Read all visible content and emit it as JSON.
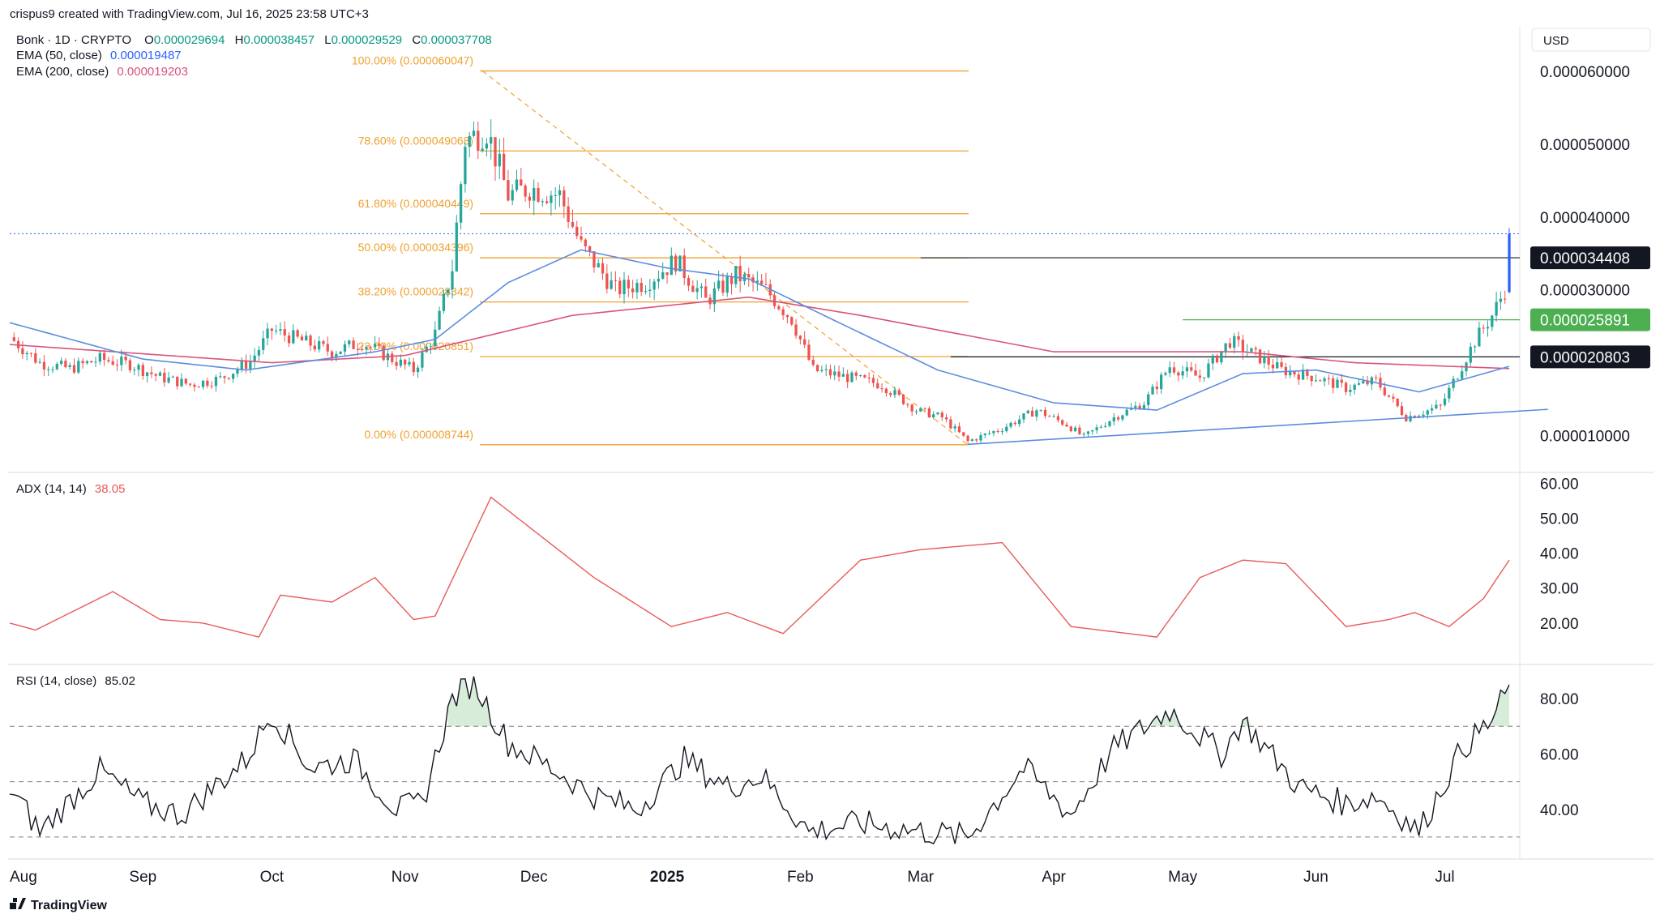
{
  "header": {
    "creator_line": "crispus9 created with TradingView.com, Jul 16, 2025 23:58 UTC+3",
    "symbol_line": "Bonk · 1D · CRYPTO",
    "ohlc": {
      "o_label": "O",
      "o_value": "0.000029694",
      "h_label": "H",
      "h_value": "0.000038457",
      "l_label": "L",
      "l_value": "0.000029529",
      "c_label": "C",
      "c_value": "0.000037708"
    },
    "ema50_label": "EMA (50, close)",
    "ema50_value": "0.000019487",
    "ema200_label": "EMA (200, close)",
    "ema200_value": "0.000019203"
  },
  "currency": "USD",
  "branding": "TradingView",
  "colors": {
    "up": "#26a69a",
    "down": "#ef5350",
    "ema50": "#5b8de0",
    "ema200": "#d9547a",
    "fib": "#f0a030",
    "adx": "#e85a5a",
    "rsi": "#131722",
    "support_green": "#4caf50",
    "last_candle": "#2962ff",
    "text_green": "#089981",
    "text_blue": "#2962ff",
    "text_pink": "#d9547a"
  },
  "chart_data": [
    {
      "type": "candlestick",
      "title": "Bonk · 1D · CRYPTO",
      "ylabel": "USD",
      "ylim": [
        7.5e-06,
        6.2e-05
      ],
      "y_ticks": [
        "0.000060000",
        "0.000050000",
        "0.000040000",
        "0.000030000",
        "0.000010000"
      ],
      "y_tick_values": [
        6e-05,
        5e-05,
        4e-05,
        3e-05,
        1e-05
      ],
      "x_ticks": [
        "Aug",
        "Sep",
        "Oct",
        "Nov",
        "Dec",
        "2025",
        "Feb",
        "Mar",
        "Apr",
        "May",
        "Jun",
        "Jul"
      ],
      "x_tick_dates": [
        "2024-08-01",
        "2024-09-01",
        "2024-10-01",
        "2024-11-01",
        "2024-12-01",
        "2025-01-01",
        "2025-02-01",
        "2025-03-01",
        "2025-04-01",
        "2025-05-01",
        "2025-06-01",
        "2025-07-01"
      ],
      "x_range": [
        "2024-08-01",
        "2025-07-16"
      ],
      "close_anchors": [
        [
          "2024-08-01",
          2.35e-05
        ],
        [
          "2024-08-08",
          2e-05
        ],
        [
          "2024-08-15",
          1.92e-05
        ],
        [
          "2024-08-22",
          2.05e-05
        ],
        [
          "2024-08-29",
          1.98e-05
        ],
        [
          "2024-09-05",
          1.8e-05
        ],
        [
          "2024-09-12",
          1.7e-05
        ],
        [
          "2024-09-19",
          1.78e-05
        ],
        [
          "2024-09-26",
          2.02e-05
        ],
        [
          "2024-10-01",
          2.45e-05
        ],
        [
          "2024-10-08",
          2.3e-05
        ],
        [
          "2024-10-15",
          2.15e-05
        ],
        [
          "2024-10-22",
          2.28e-05
        ],
        [
          "2024-10-29",
          2.05e-05
        ],
        [
          "2024-11-03",
          1.9e-05
        ],
        [
          "2024-11-08",
          2.4e-05
        ],
        [
          "2024-11-12",
          3.3e-05
        ],
        [
          "2024-11-15",
          5.05e-05
        ],
        [
          "2024-11-20",
          5.2e-05
        ],
        [
          "2024-11-25",
          4.3e-05
        ],
        [
          "2024-11-30",
          4.4e-05
        ],
        [
          "2024-12-07",
          4.3e-05
        ],
        [
          "2024-12-12",
          3.6e-05
        ],
        [
          "2024-12-20",
          3e-05
        ],
        [
          "2024-12-27",
          3.1e-05
        ],
        [
          "2025-01-03",
          3.4e-05
        ],
        [
          "2025-01-10",
          2.85e-05
        ],
        [
          "2025-01-17",
          3.2e-05
        ],
        [
          "2025-01-24",
          3e-05
        ],
        [
          "2025-01-30",
          2.6e-05
        ],
        [
          "2025-02-04",
          1.9e-05
        ],
        [
          "2025-02-12",
          1.8e-05
        ],
        [
          "2025-02-20",
          1.7e-05
        ],
        [
          "2025-02-28",
          1.35e-05
        ],
        [
          "2025-03-06",
          1.25e-05
        ],
        [
          "2025-03-12",
          9.2e-06
        ],
        [
          "2025-03-20",
          1.1e-05
        ],
        [
          "2025-03-28",
          1.35e-05
        ],
        [
          "2025-04-04",
          1.15e-05
        ],
        [
          "2025-04-08",
          9.8e-06
        ],
        [
          "2025-04-15",
          1.25e-05
        ],
        [
          "2025-04-22",
          1.45e-05
        ],
        [
          "2025-04-28",
          1.95e-05
        ],
        [
          "2025-05-05",
          1.8e-05
        ],
        [
          "2025-05-12",
          2.3e-05
        ],
        [
          "2025-05-18",
          2.1e-05
        ],
        [
          "2025-05-24",
          1.9e-05
        ],
        [
          "2025-06-01",
          1.8e-05
        ],
        [
          "2025-06-08",
          1.65e-05
        ],
        [
          "2025-06-15",
          1.75e-05
        ],
        [
          "2025-06-22",
          1.25e-05
        ],
        [
          "2025-06-30",
          1.4e-05
        ],
        [
          "2025-07-04",
          1.85e-05
        ],
        [
          "2025-07-08",
          2.3e-05
        ],
        [
          "2025-07-12",
          2.65e-05
        ],
        [
          "2025-07-15",
          3e-05
        ],
        [
          "2025-07-16",
          3.77e-05
        ]
      ],
      "ema50_anchors": [
        [
          "2024-08-01",
          2.55e-05
        ],
        [
          "2024-09-01",
          2.05e-05
        ],
        [
          "2024-09-25",
          1.9e-05
        ],
        [
          "2024-10-25",
          2.15e-05
        ],
        [
          "2024-11-08",
          2.32e-05
        ],
        [
          "2024-11-25",
          3.1e-05
        ],
        [
          "2024-12-12",
          3.55e-05
        ],
        [
          "2025-01-01",
          3.3e-05
        ],
        [
          "2025-01-20",
          3.15e-05
        ],
        [
          "2025-02-10",
          2.55e-05
        ],
        [
          "2025-03-05",
          1.9e-05
        ],
        [
          "2025-04-01",
          1.45e-05
        ],
        [
          "2025-04-25",
          1.35e-05
        ],
        [
          "2025-05-15",
          1.85e-05
        ],
        [
          "2025-06-01",
          1.9e-05
        ],
        [
          "2025-06-25",
          1.6e-05
        ],
        [
          "2025-07-16",
          1.95e-05
        ]
      ],
      "ema200_anchors": [
        [
          "2024-08-01",
          2.25e-05
        ],
        [
          "2024-10-01",
          2e-05
        ],
        [
          "2024-11-01",
          2.1e-05
        ],
        [
          "2024-12-10",
          2.65e-05
        ],
        [
          "2025-01-20",
          2.9e-05
        ],
        [
          "2025-02-15",
          2.65e-05
        ],
        [
          "2025-04-01",
          2.15e-05
        ],
        [
          "2025-05-15",
          2.15e-05
        ],
        [
          "2025-06-10",
          2e-05
        ],
        [
          "2025-07-16",
          1.92e-05
        ]
      ],
      "fib_levels": [
        {
          "label": "100.00% (0.000060047)",
          "value": 6.0047e-05
        },
        {
          "label": "78.60% (0.000049068)",
          "value": 4.9068e-05
        },
        {
          "label": "61.80% (0.000040449)",
          "value": 4.0449e-05
        },
        {
          "label": "50.00% (0.000034396)",
          "value": 3.4396e-05
        },
        {
          "label": "38.20% (0.000028342)",
          "value": 2.8342e-05
        },
        {
          "label": "23.60% (0.000020851)",
          "value": 2.0851e-05
        },
        {
          "label": "0.00% (0.000008744)",
          "value": 8.744e-06
        }
      ],
      "fib_range": [
        "2024-11-19",
        "2025-03-12"
      ],
      "price_levels": [
        {
          "label": "0.000034408",
          "value": 3.4408e-05,
          "from": "2025-03-01",
          "style": "black"
        },
        {
          "label": "0.000025891",
          "value": 2.5891e-05,
          "from": "2025-05-01",
          "style": "green"
        },
        {
          "label": "0.000020803",
          "value": 2.0803e-05,
          "from": "2025-03-08",
          "style": "black"
        }
      ],
      "current_price_line": 3.7708e-05,
      "trendline": [
        [
          "2025-03-12",
          8.8e-06
        ],
        [
          "2025-07-25",
          1.36e-05
        ]
      ],
      "fib_diagonal": [
        [
          "2024-11-19",
          6.0047e-05
        ],
        [
          "2025-03-12",
          8.744e-06
        ]
      ]
    },
    {
      "type": "line",
      "series": [
        {
          "name": "ADX (14, 14)",
          "last_value": "38.05"
        }
      ],
      "ylim": [
        10,
        61
      ],
      "y_ticks": [
        "60.00",
        "50.00",
        "40.00",
        "30.00",
        "20.00"
      ],
      "y_tick_values": [
        60,
        50,
        40,
        30,
        20
      ],
      "anchors": [
        [
          "2024-08-01",
          20
        ],
        [
          "2024-08-07",
          18
        ],
        [
          "2024-08-25",
          29
        ],
        [
          "2024-09-05",
          21
        ],
        [
          "2024-09-15",
          20
        ],
        [
          "2024-09-28",
          16
        ],
        [
          "2024-10-03",
          28
        ],
        [
          "2024-10-15",
          26
        ],
        [
          "2024-10-25",
          33
        ],
        [
          "2024-11-03",
          21
        ],
        [
          "2024-11-08",
          22
        ],
        [
          "2024-11-21",
          56
        ],
        [
          "2024-12-15",
          33
        ],
        [
          "2025-01-02",
          19
        ],
        [
          "2025-01-15",
          23
        ],
        [
          "2025-01-28",
          17
        ],
        [
          "2025-02-15",
          38
        ],
        [
          "2025-03-01",
          41
        ],
        [
          "2025-03-20",
          43
        ],
        [
          "2025-04-05",
          19
        ],
        [
          "2025-04-25",
          16
        ],
        [
          "2025-05-05",
          33
        ],
        [
          "2025-05-15",
          38
        ],
        [
          "2025-05-25",
          37
        ],
        [
          "2025-06-08",
          19
        ],
        [
          "2025-06-18",
          21
        ],
        [
          "2025-06-24",
          23
        ],
        [
          "2025-07-02",
          19
        ],
        [
          "2025-07-10",
          27
        ],
        [
          "2025-07-16",
          38
        ]
      ]
    },
    {
      "type": "line",
      "series": [
        {
          "name": "RSI (14, close)",
          "last_value": "85.02"
        }
      ],
      "ylim": [
        25,
        90
      ],
      "y_ticks": [
        "80.00",
        "60.00",
        "40.00"
      ],
      "y_tick_values": [
        80,
        60,
        40
      ],
      "bands": [
        70,
        50,
        30
      ],
      "anchors": [
        [
          "2024-08-01",
          48
        ],
        [
          "2024-08-08",
          32
        ],
        [
          "2024-08-22",
          54
        ],
        [
          "2024-09-01",
          42
        ],
        [
          "2024-09-10",
          38
        ],
        [
          "2024-09-25",
          58
        ],
        [
          "2024-10-01",
          75
        ],
        [
          "2024-10-10",
          55
        ],
        [
          "2024-10-20",
          58
        ],
        [
          "2024-10-30",
          40
        ],
        [
          "2024-11-05",
          42
        ],
        [
          "2024-11-12",
          80
        ],
        [
          "2024-11-17",
          86
        ],
        [
          "2024-11-25",
          64
        ],
        [
          "2024-12-05",
          55
        ],
        [
          "2024-12-15",
          45
        ],
        [
          "2024-12-25",
          40
        ],
        [
          "2025-01-05",
          58
        ],
        [
          "2025-01-15",
          48
        ],
        [
          "2025-01-23",
          52
        ],
        [
          "2025-02-03",
          32
        ],
        [
          "2025-02-15",
          35
        ],
        [
          "2025-03-01",
          32
        ],
        [
          "2025-03-12",
          30
        ],
        [
          "2025-03-25",
          55
        ],
        [
          "2025-04-05",
          38
        ],
        [
          "2025-04-15",
          62
        ],
        [
          "2025-04-28",
          76
        ],
        [
          "2025-05-10",
          60
        ],
        [
          "2025-05-15",
          72
        ],
        [
          "2025-05-28",
          48
        ],
        [
          "2025-06-08",
          42
        ],
        [
          "2025-06-15",
          45
        ],
        [
          "2025-06-25",
          32
        ],
        [
          "2025-07-05",
          62
        ],
        [
          "2025-07-12",
          72
        ],
        [
          "2025-07-16",
          85
        ]
      ]
    }
  ]
}
